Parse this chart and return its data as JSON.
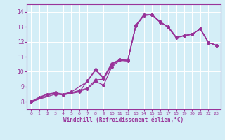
{
  "xlabel": "Windchill (Refroidissement éolien,°C)",
  "ylabel": "",
  "background_color": "#d4eef7",
  "grid_color": "#ffffff",
  "line_color": "#993399",
  "xlim": [
    -0.5,
    23.5
  ],
  "ylim": [
    7.5,
    14.5
  ],
  "xticks": [
    0,
    1,
    2,
    3,
    4,
    5,
    6,
    7,
    8,
    9,
    10,
    11,
    12,
    13,
    14,
    15,
    16,
    17,
    18,
    19,
    20,
    21,
    22,
    23
  ],
  "yticks": [
    8,
    9,
    10,
    11,
    12,
    13,
    14
  ],
  "curves": [
    [
      [
        0,
        8.0
      ],
      [
        1,
        8.3
      ],
      [
        2,
        8.5
      ],
      [
        3,
        8.55
      ],
      [
        4,
        8.5
      ],
      [
        5,
        8.6
      ],
      [
        6,
        8.7
      ],
      [
        7,
        8.85
      ],
      [
        8,
        9.35
      ],
      [
        9,
        9.1
      ],
      [
        10,
        10.3
      ],
      [
        11,
        10.75
      ],
      [
        12,
        10.7
      ],
      [
        13,
        13.05
      ],
      [
        14,
        13.75
      ],
      [
        15,
        13.8
      ],
      [
        16,
        13.35
      ],
      [
        17,
        12.95
      ],
      [
        18,
        12.25
      ],
      [
        19,
        12.4
      ],
      [
        20,
        12.5
      ],
      [
        21,
        12.85
      ],
      [
        22,
        11.95
      ],
      [
        23,
        11.75
      ]
    ],
    [
      [
        0,
        8.0
      ],
      [
        2,
        8.5
      ],
      [
        3,
        8.6
      ],
      [
        4,
        8.45
      ],
      [
        5,
        8.6
      ],
      [
        6,
        8.75
      ],
      [
        7,
        8.9
      ],
      [
        8,
        9.45
      ],
      [
        9,
        9.5
      ],
      [
        10,
        10.4
      ],
      [
        11,
        10.8
      ],
      [
        12,
        10.75
      ],
      [
        13,
        13.05
      ],
      [
        14,
        13.75
      ],
      [
        15,
        13.8
      ],
      [
        16,
        13.35
      ],
      [
        17,
        12.95
      ],
      [
        18,
        12.3
      ],
      [
        19,
        12.4
      ],
      [
        20,
        12.5
      ],
      [
        21,
        12.85
      ],
      [
        22,
        11.95
      ],
      [
        23,
        11.75
      ]
    ],
    [
      [
        0,
        8.0
      ],
      [
        3,
        8.6
      ],
      [
        4,
        8.5
      ],
      [
        5,
        8.65
      ],
      [
        7,
        9.35
      ],
      [
        8,
        10.1
      ],
      [
        9,
        9.55
      ],
      [
        10,
        10.5
      ],
      [
        11,
        10.8
      ],
      [
        12,
        10.75
      ],
      [
        13,
        13.1
      ],
      [
        14,
        13.8
      ],
      [
        15,
        13.8
      ],
      [
        16,
        13.3
      ],
      [
        17,
        13.0
      ],
      [
        18,
        12.3
      ],
      [
        19,
        12.4
      ],
      [
        20,
        12.5
      ],
      [
        21,
        12.85
      ],
      [
        22,
        11.95
      ],
      [
        23,
        11.75
      ]
    ],
    [
      [
        0,
        8.0
      ],
      [
        3,
        8.5
      ],
      [
        4,
        8.45
      ],
      [
        6,
        8.65
      ],
      [
        7,
        9.4
      ],
      [
        8,
        10.15
      ],
      [
        9,
        9.6
      ],
      [
        10,
        10.55
      ],
      [
        11,
        10.8
      ],
      [
        12,
        10.75
      ],
      [
        13,
        13.1
      ],
      [
        14,
        13.8
      ],
      [
        15,
        13.8
      ],
      [
        16,
        13.3
      ],
      [
        17,
        13.0
      ],
      [
        18,
        12.3
      ],
      [
        19,
        12.4
      ],
      [
        20,
        12.5
      ],
      [
        21,
        12.85
      ],
      [
        22,
        11.95
      ],
      [
        23,
        11.75
      ]
    ]
  ]
}
